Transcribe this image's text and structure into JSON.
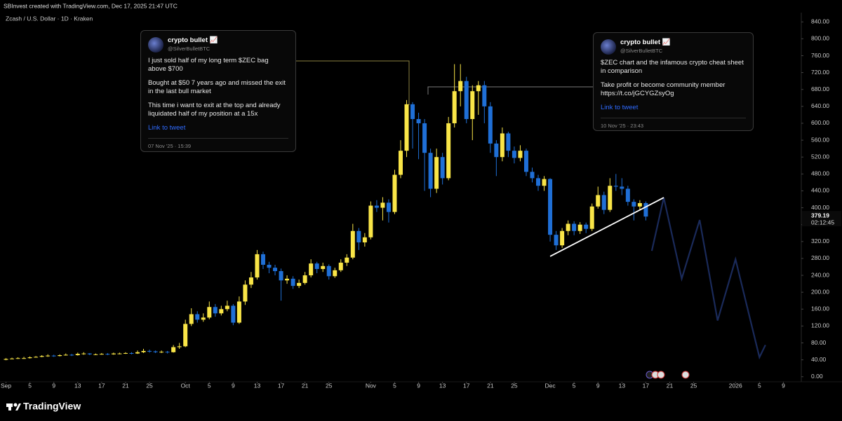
{
  "header": "SBInvest created with TradingView.com, Dec 17, 2025 21:47 UTC",
  "brand": "TradingView",
  "tweets": [
    {
      "name": "crypto bullet 📈",
      "handle": "@SilverBulletBTC",
      "paragraphs": [
        "I just sold half of my long term $ZEC bag above $700",
        "Bought at $50 7 years ago and missed the exit in the last bull market",
        "This time i want to exit at the top and already liquidated half of my position at a 15x"
      ],
      "link": "Link to tweet",
      "date": "07 Nov '25 · 15:39"
    },
    {
      "name": "crypto bullet 📈",
      "handle": "@SilverBulletBTC",
      "paragraphs": [
        "$ZEC chart and the infamous crypto cheat sheet in comparison",
        "Take profit or become community member https://t.co/jGCYGZsyOg"
      ],
      "link": "Link to tweet",
      "date": "10 Nov '25 · 23:43"
    }
  ],
  "chart_data": {
    "type": "candlestick",
    "title": "Zcash / U.S. Dollar · 1D · Kraken",
    "up_color": "#f9e547",
    "down_color": "#1f6fd6",
    "grid": false,
    "x": [
      "2025-09-01",
      "2025-09-02",
      "2025-09-03",
      "2025-09-04",
      "2025-09-05",
      "2025-09-06",
      "2025-09-07",
      "2025-09-08",
      "2025-09-09",
      "2025-09-10",
      "2025-09-11",
      "2025-09-12",
      "2025-09-13",
      "2025-09-14",
      "2025-09-15",
      "2025-09-16",
      "2025-09-17",
      "2025-09-18",
      "2025-09-19",
      "2025-09-20",
      "2025-09-21",
      "2025-09-22",
      "2025-09-23",
      "2025-09-24",
      "2025-09-25",
      "2025-09-26",
      "2025-09-27",
      "2025-09-28",
      "2025-09-29",
      "2025-09-30",
      "2025-10-01",
      "2025-10-02",
      "2025-10-03",
      "2025-10-04",
      "2025-10-05",
      "2025-10-06",
      "2025-10-07",
      "2025-10-08",
      "2025-10-09",
      "2025-10-10",
      "2025-10-11",
      "2025-10-12",
      "2025-10-13",
      "2025-10-14",
      "2025-10-15",
      "2025-10-16",
      "2025-10-17",
      "2025-10-18",
      "2025-10-19",
      "2025-10-20",
      "2025-10-21",
      "2025-10-22",
      "2025-10-23",
      "2025-10-24",
      "2025-10-25",
      "2025-10-26",
      "2025-10-27",
      "2025-10-28",
      "2025-10-29",
      "2025-10-30",
      "2025-10-31",
      "2025-11-01",
      "2025-11-02",
      "2025-11-03",
      "2025-11-04",
      "2025-11-05",
      "2025-11-06",
      "2025-11-07",
      "2025-11-08",
      "2025-11-09",
      "2025-11-10",
      "2025-11-11",
      "2025-11-12",
      "2025-11-13",
      "2025-11-14",
      "2025-11-15",
      "2025-11-16",
      "2025-11-17",
      "2025-11-18",
      "2025-11-19",
      "2025-11-20",
      "2025-11-21",
      "2025-11-22",
      "2025-11-23",
      "2025-11-24",
      "2025-11-25",
      "2025-11-26",
      "2025-11-27",
      "2025-11-28",
      "2025-11-29",
      "2025-11-30",
      "2025-12-01",
      "2025-12-02",
      "2025-12-03",
      "2025-12-04",
      "2025-12-05",
      "2025-12-06",
      "2025-12-07",
      "2025-12-08",
      "2025-12-09",
      "2025-12-10",
      "2025-12-11",
      "2025-12-12",
      "2025-12-13",
      "2025-12-14",
      "2025-12-15",
      "2025-12-16",
      "2025-12-17"
    ],
    "open": [
      40,
      42,
      43,
      44,
      44,
      46,
      47,
      49,
      50,
      49,
      51,
      52,
      51,
      54,
      55,
      53,
      53,
      54,
      53,
      55,
      55,
      56,
      55,
      58,
      61,
      60,
      58,
      59,
      58,
      70,
      72,
      125,
      148,
      135,
      140,
      165,
      150,
      160,
      168,
      128,
      178,
      218,
      235,
      290,
      265,
      258,
      250,
      228,
      232,
      215,
      222,
      240,
      268,
      255,
      262,
      238,
      252,
      270,
      282,
      345,
      318,
      330,
      405,
      400,
      412,
      390,
      478,
      535,
      645,
      610,
      600,
      530,
      445,
      520,
      470,
      600,
      676,
      700,
      610,
      676,
      690,
      640,
      552,
      520,
      576,
      535,
      518,
      535,
      485,
      470,
      452,
      468,
      336,
      311,
      345,
      362,
      345,
      360,
      350,
      403,
      430,
      395,
      452,
      450,
      445,
      414,
      403,
      411
    ],
    "high": [
      44,
      45,
      46,
      47,
      48,
      49,
      51,
      53,
      52,
      53,
      55,
      54,
      57,
      58,
      56,
      55,
      56,
      56,
      57,
      57,
      58,
      58,
      62,
      66,
      64,
      62,
      62,
      61,
      75,
      80,
      135,
      162,
      155,
      150,
      178,
      172,
      168,
      180,
      172,
      190,
      228,
      248,
      300,
      296,
      272,
      265,
      256,
      240,
      238,
      230,
      248,
      278,
      272,
      270,
      266,
      258,
      278,
      290,
      362,
      352,
      340,
      415,
      418,
      425,
      420,
      490,
      560,
      655,
      650,
      625,
      610,
      540,
      540,
      530,
      615,
      740,
      740,
      710,
      690,
      700,
      700,
      650,
      560,
      590,
      580,
      545,
      548,
      540,
      495,
      478,
      475,
      470,
      345,
      352,
      370,
      368,
      366,
      365,
      410,
      450,
      438,
      470,
      480,
      470,
      452,
      420,
      418,
      415
    ],
    "low": [
      39,
      41,
      42,
      42,
      43,
      45,
      46,
      47,
      47,
      48,
      50,
      49,
      50,
      52,
      51,
      51,
      52,
      51,
      52,
      53,
      54,
      53,
      54,
      56,
      57,
      56,
      56,
      55,
      57,
      66,
      70,
      120,
      128,
      130,
      136,
      142,
      145,
      155,
      122,
      125,
      170,
      210,
      230,
      255,
      245,
      240,
      180,
      220,
      208,
      210,
      218,
      235,
      245,
      248,
      230,
      234,
      248,
      262,
      278,
      300,
      308,
      325,
      390,
      370,
      365,
      385,
      470,
      520,
      540,
      515,
      440,
      425,
      435,
      455,
      465,
      590,
      640,
      600,
      560,
      620,
      600,
      530,
      475,
      510,
      520,
      505,
      510,
      475,
      460,
      440,
      440,
      320,
      300,
      305,
      335,
      335,
      338,
      340,
      345,
      398,
      385,
      390,
      440,
      430,
      405,
      370,
      395,
      370
    ],
    "close": [
      42,
      43,
      44,
      44,
      46,
      47,
      49,
      50,
      49,
      51,
      52,
      51,
      54,
      55,
      53,
      53,
      54,
      53,
      55,
      55,
      56,
      55,
      58,
      61,
      60,
      58,
      59,
      58,
      70,
      72,
      125,
      148,
      135,
      140,
      165,
      150,
      160,
      168,
      128,
      178,
      218,
      235,
      290,
      265,
      258,
      250,
      228,
      232,
      215,
      222,
      240,
      268,
      255,
      262,
      238,
      252,
      270,
      282,
      345,
      318,
      330,
      405,
      400,
      412,
      390,
      478,
      535,
      645,
      610,
      600,
      530,
      445,
      520,
      470,
      600,
      676,
      700,
      610,
      676,
      690,
      640,
      552,
      520,
      576,
      535,
      518,
      535,
      485,
      470,
      452,
      468,
      336,
      311,
      345,
      362,
      345,
      360,
      350,
      403,
      430,
      395,
      452,
      450,
      445,
      414,
      403,
      411,
      379.19
    ],
    "last_price": 379.19,
    "countdown": "02:12:45",
    "trendline": {
      "x": [
        "2025-12-01",
        "2025-12-20"
      ],
      "values": [
        285,
        424
      ],
      "color": "#ffffff"
    },
    "projection": {
      "x": [
        "2025-12-18",
        "2025-12-20",
        "2025-12-23",
        "2025-12-26",
        "2025-12-29",
        "2026-01-01",
        "2026-01-05",
        "2026-01-06"
      ],
      "values": [
        298,
        424,
        232,
        371,
        133,
        278,
        46,
        75
      ],
      "color": "#1a2a5a"
    },
    "xlim": [
      "2025-08-31",
      "2026-01-12"
    ],
    "xticks": [
      {
        "value": "2025-09-01",
        "label": "Sep"
      },
      {
        "value": "2025-09-05",
        "label": "5"
      },
      {
        "value": "2025-09-09",
        "label": "9"
      },
      {
        "value": "2025-09-13",
        "label": "13"
      },
      {
        "value": "2025-09-17",
        "label": "17"
      },
      {
        "value": "2025-09-21",
        "label": "21"
      },
      {
        "value": "2025-09-25",
        "label": "25"
      },
      {
        "value": "2025-10-01",
        "label": "Oct"
      },
      {
        "value": "2025-10-05",
        "label": "5"
      },
      {
        "value": "2025-10-09",
        "label": "9"
      },
      {
        "value": "2025-10-13",
        "label": "13"
      },
      {
        "value": "2025-10-17",
        "label": "17"
      },
      {
        "value": "2025-10-21",
        "label": "21"
      },
      {
        "value": "2025-10-25",
        "label": "25"
      },
      {
        "value": "2025-11-01",
        "label": "Nov"
      },
      {
        "value": "2025-11-05",
        "label": "5"
      },
      {
        "value": "2025-11-09",
        "label": "9"
      },
      {
        "value": "2025-11-13",
        "label": "13"
      },
      {
        "value": "2025-11-17",
        "label": "17"
      },
      {
        "value": "2025-11-21",
        "label": "21"
      },
      {
        "value": "2025-11-25",
        "label": "25"
      },
      {
        "value": "2025-12-01",
        "label": "Dec"
      },
      {
        "value": "2025-12-05",
        "label": "5"
      },
      {
        "value": "2025-12-09",
        "label": "9"
      },
      {
        "value": "2025-12-13",
        "label": "13"
      },
      {
        "value": "2025-12-17",
        "label": "17"
      },
      {
        "value": "2025-12-21",
        "label": "21"
      },
      {
        "value": "2025-12-25",
        "label": "25"
      },
      {
        "value": "2026-01-01",
        "label": "2026"
      },
      {
        "value": "2026-01-05",
        "label": "5"
      },
      {
        "value": "2026-01-09",
        "label": "9"
      }
    ],
    "ylim": [
      -12,
      862
    ],
    "yticks": [
      {
        "value": 0,
        "label": "0.00"
      },
      {
        "value": 40,
        "label": "40.00"
      },
      {
        "value": 80,
        "label": "80.00"
      },
      {
        "value": 120,
        "label": "120.00"
      },
      {
        "value": 160,
        "label": "160.00"
      },
      {
        "value": 200,
        "label": "200.00"
      },
      {
        "value": 240,
        "label": "240.00"
      },
      {
        "value": 280,
        "label": "280.00"
      },
      {
        "value": 320,
        "label": "320.00"
      },
      {
        "value": 360,
        "label": "360.00"
      },
      {
        "value": 400,
        "label": "400.00"
      },
      {
        "value": 440,
        "label": "440.00"
      },
      {
        "value": 480,
        "label": "480.00"
      },
      {
        "value": 520,
        "label": "520.00"
      },
      {
        "value": 560,
        "label": "560.00"
      },
      {
        "value": 600,
        "label": "600.00"
      },
      {
        "value": 640,
        "label": "640.00"
      },
      {
        "value": 680,
        "label": "680.00"
      },
      {
        "value": 720,
        "label": "720.00"
      },
      {
        "value": 760,
        "label": "760.00"
      },
      {
        "value": 800,
        "label": "800.00"
      },
      {
        "value": 840,
        "label": "840.00"
      }
    ]
  }
}
